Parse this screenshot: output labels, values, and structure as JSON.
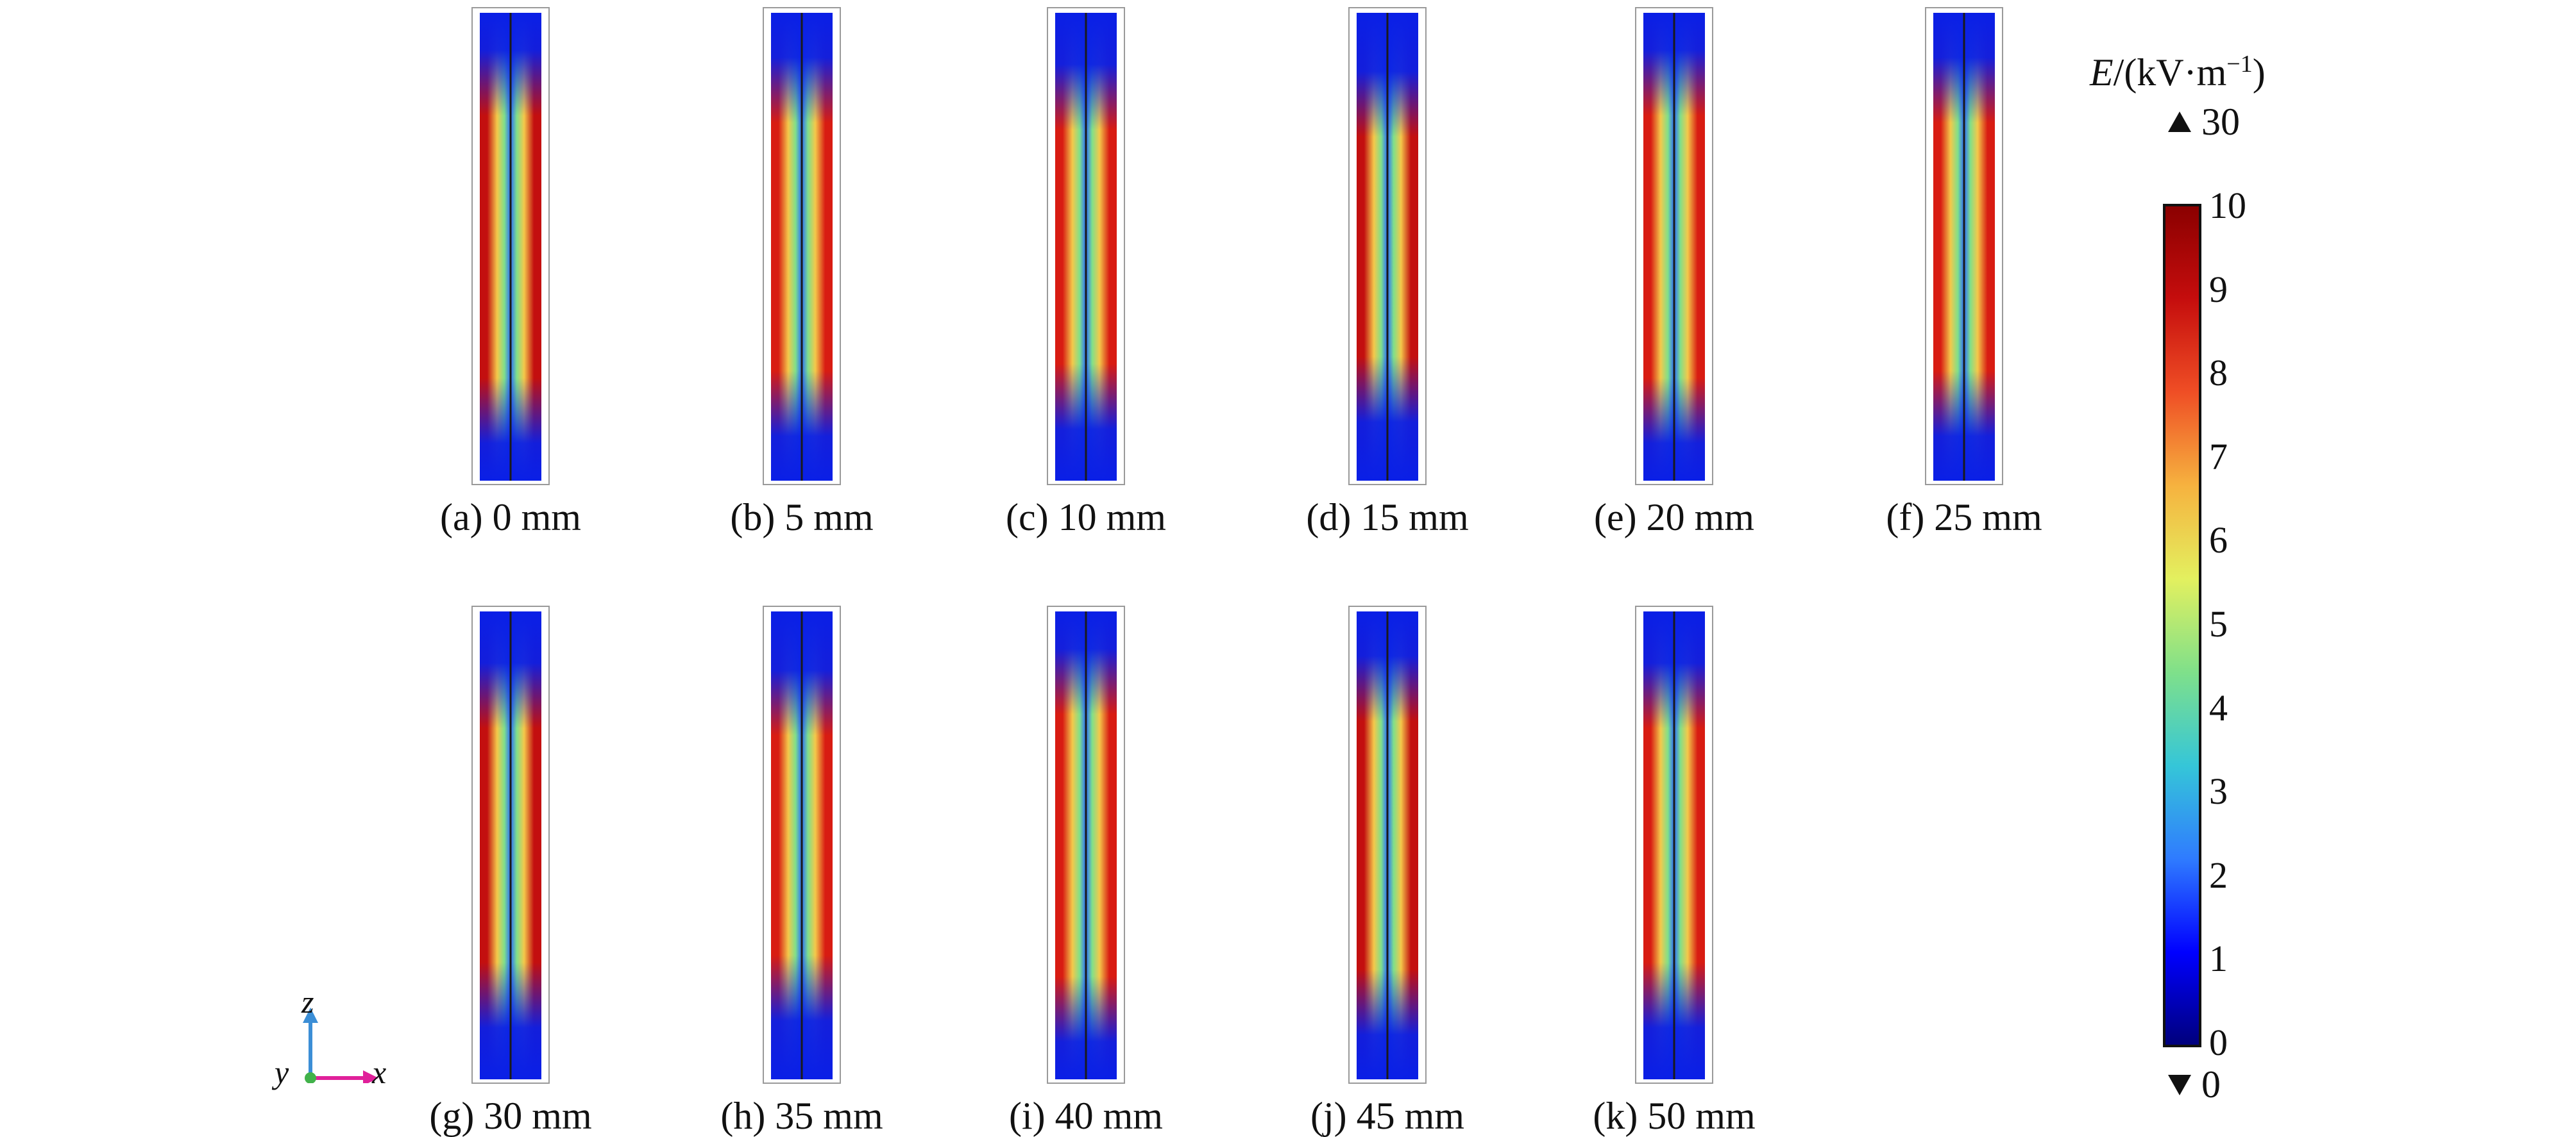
{
  "panels": [
    {
      "label": "(a) 0 mm",
      "variant": 0
    },
    {
      "label": "(b) 5 mm",
      "variant": 1
    },
    {
      "label": "(c) 10 mm",
      "variant": 2
    },
    {
      "label": "(d) 15 mm",
      "variant": 3
    },
    {
      "label": "(e) 20 mm",
      "variant": 4
    },
    {
      "label": "(f) 25 mm",
      "variant": 5
    },
    {
      "label": "(g) 30 mm",
      "variant": 6
    },
    {
      "label": "(h) 35 mm",
      "variant": 7
    },
    {
      "label": "(i) 40 mm",
      "variant": 8
    },
    {
      "label": "(j) 45 mm",
      "variant": 9
    },
    {
      "label": "(k) 50 mm",
      "variant": 10
    }
  ],
  "colorbar": {
    "title_var": "E",
    "title_unit": "/(kV·m",
    "title_exp": "−1",
    "title_close": ")",
    "max_marker": "30",
    "min_marker": "0",
    "ticks": [
      "10",
      "9",
      "8",
      "7",
      "6",
      "5",
      "4",
      "3",
      "2",
      "1",
      "0"
    ],
    "range": [
      0,
      10
    ],
    "colors": [
      "#00007a",
      "#0000ff",
      "#2f7bff",
      "#35c6d8",
      "#7fe08a",
      "#e3f05f",
      "#f6b23f",
      "#ef4e25",
      "#c50d0d",
      "#8a0000"
    ]
  },
  "axes": {
    "z": "z",
    "y": "y",
    "x": "x"
  },
  "colors": {
    "z_axis": "#3b8ed6",
    "x_axis": "#e0209a",
    "origin": "#41b24a",
    "frame": "#9a9a9a",
    "field_low": "#0a1fe6",
    "field_mid": "#7fe08a",
    "field_high": "#c30f0f"
  }
}
